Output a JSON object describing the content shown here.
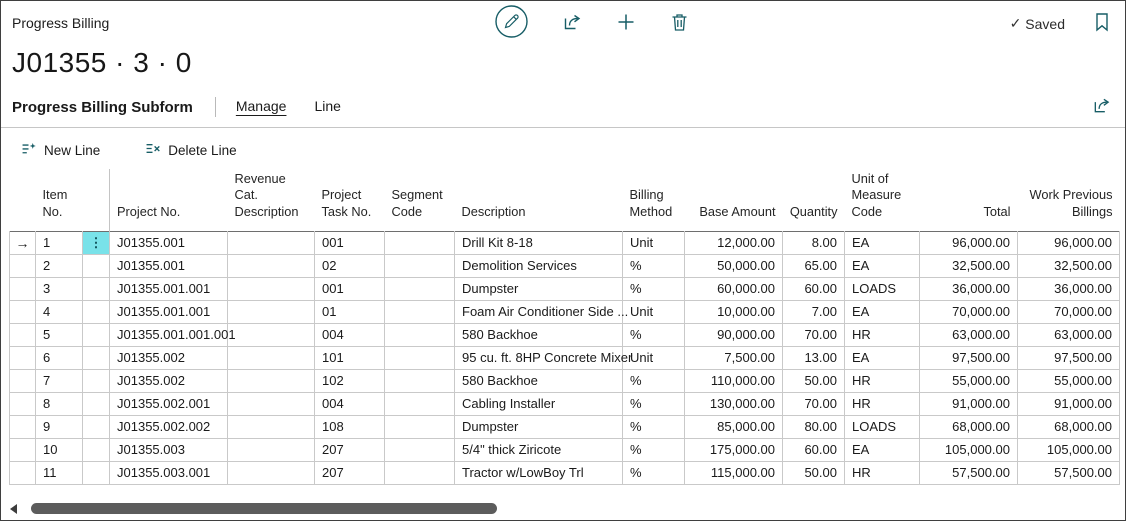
{
  "page": {
    "caption": "Progress Billing",
    "title": "J01355 · 3 · 0",
    "status_label": "Saved"
  },
  "colors": {
    "accent_teal": "#175d66",
    "current_row_highlight": "#79e2e9",
    "grid_line": "#c9c9c9"
  },
  "subform": {
    "title": "Progress Billing Subform",
    "tabs": [
      {
        "label": "Manage",
        "active": true
      },
      {
        "label": "Line",
        "active": false
      }
    ],
    "actions": [
      {
        "label": "New Line",
        "icon": "new-line-icon"
      },
      {
        "label": "Delete Line",
        "icon": "delete-line-icon"
      }
    ]
  },
  "table": {
    "glyphs": {
      "current_row_arrow": "→",
      "row_menu": "⋮"
    },
    "columns": [
      {
        "key": "item_no",
        "label": "Item\nNo.",
        "align": "left"
      },
      {
        "key": "project_no",
        "label": "Project No.",
        "align": "left"
      },
      {
        "key": "revenue_cat",
        "label": "Revenue Cat.\nDescription",
        "align": "left"
      },
      {
        "key": "project_task_no",
        "label": "Project\nTask No.",
        "align": "left"
      },
      {
        "key": "segment_code",
        "label": "Segment\nCode",
        "align": "left"
      },
      {
        "key": "description",
        "label": "Description",
        "align": "left"
      },
      {
        "key": "billing_method",
        "label": "Billing\nMethod",
        "align": "left"
      },
      {
        "key": "base_amount",
        "label": "Base Amount",
        "align": "right"
      },
      {
        "key": "quantity",
        "label": "Quantity",
        "align": "right"
      },
      {
        "key": "uom_code",
        "label": "Unit of\nMeasure\nCode",
        "align": "left"
      },
      {
        "key": "total",
        "label": "Total",
        "align": "right"
      },
      {
        "key": "work_prev",
        "label": "Work Previous\nBillings",
        "align": "right"
      }
    ],
    "rows": [
      {
        "current": true,
        "item_no": "1",
        "project_no": "J01355.001",
        "revenue_cat": "",
        "project_task_no": "001",
        "segment_code": "",
        "description": "Drill Kit 8-18",
        "billing_method": "Unit",
        "base_amount": "12,000.00",
        "quantity": "8.00",
        "uom_code": "EA",
        "total": "96,000.00",
        "work_prev": "96,000.00"
      },
      {
        "current": false,
        "item_no": "2",
        "project_no": "J01355.001",
        "revenue_cat": "",
        "project_task_no": "02",
        "segment_code": "",
        "description": "Demolition Services",
        "billing_method": "%",
        "base_amount": "50,000.00",
        "quantity": "65.00",
        "uom_code": "EA",
        "total": "32,500.00",
        "work_prev": "32,500.00"
      },
      {
        "current": false,
        "item_no": "3",
        "project_no": "J01355.001.001",
        "revenue_cat": "",
        "project_task_no": "001",
        "segment_code": "",
        "description": "Dumpster",
        "billing_method": "%",
        "base_amount": "60,000.00",
        "quantity": "60.00",
        "uom_code": "LOADS",
        "total": "36,000.00",
        "work_prev": "36,000.00"
      },
      {
        "current": false,
        "item_no": "4",
        "project_no": "J01355.001.001",
        "revenue_cat": "",
        "project_task_no": "01",
        "segment_code": "",
        "description": "Foam Air Conditioner Side ...",
        "billing_method": "Unit",
        "base_amount": "10,000.00",
        "quantity": "7.00",
        "uom_code": "EA",
        "total": "70,000.00",
        "work_prev": "70,000.00"
      },
      {
        "current": false,
        "item_no": "5",
        "project_no": "J01355.001.001.001",
        "revenue_cat": "",
        "project_task_no": "004",
        "segment_code": "",
        "description": "580 Backhoe",
        "billing_method": "%",
        "base_amount": "90,000.00",
        "quantity": "70.00",
        "uom_code": "HR",
        "total": "63,000.00",
        "work_prev": "63,000.00"
      },
      {
        "current": false,
        "item_no": "6",
        "project_no": "J01355.002",
        "revenue_cat": "",
        "project_task_no": "101",
        "segment_code": "",
        "description": "95 cu. ft. 8HP Concrete Mixer",
        "billing_method": "Unit",
        "base_amount": "7,500.00",
        "quantity": "13.00",
        "uom_code": "EA",
        "total": "97,500.00",
        "work_prev": "97,500.00"
      },
      {
        "current": false,
        "item_no": "7",
        "project_no": "J01355.002",
        "revenue_cat": "",
        "project_task_no": "102",
        "segment_code": "",
        "description": "580 Backhoe",
        "billing_method": "%",
        "base_amount": "110,000.00",
        "quantity": "50.00",
        "uom_code": "HR",
        "total": "55,000.00",
        "work_prev": "55,000.00"
      },
      {
        "current": false,
        "item_no": "8",
        "project_no": "J01355.002.001",
        "revenue_cat": "",
        "project_task_no": "004",
        "segment_code": "",
        "description": "Cabling Installer",
        "billing_method": "%",
        "base_amount": "130,000.00",
        "quantity": "70.00",
        "uom_code": "HR",
        "total": "91,000.00",
        "work_prev": "91,000.00"
      },
      {
        "current": false,
        "item_no": "9",
        "project_no": "J01355.002.002",
        "revenue_cat": "",
        "project_task_no": "108",
        "segment_code": "",
        "description": "Dumpster",
        "billing_method": "%",
        "base_amount": "85,000.00",
        "quantity": "80.00",
        "uom_code": "LOADS",
        "total": "68,000.00",
        "work_prev": "68,000.00"
      },
      {
        "current": false,
        "item_no": "10",
        "project_no": "J01355.003",
        "revenue_cat": "",
        "project_task_no": "207",
        "segment_code": "",
        "description": "5/4\" thick Ziricote",
        "billing_method": "%",
        "base_amount": "175,000.00",
        "quantity": "60.00",
        "uom_code": "EA",
        "total": "105,000.00",
        "work_prev": "105,000.00"
      },
      {
        "current": false,
        "item_no": "11",
        "project_no": "J01355.003.001",
        "revenue_cat": "",
        "project_task_no": "207",
        "segment_code": "",
        "description": "Tractor w/LowBoy Trl",
        "billing_method": "%",
        "base_amount": "115,000.00",
        "quantity": "50.00",
        "uom_code": "HR",
        "total": "57,500.00",
        "work_prev": "57,500.00"
      }
    ]
  }
}
